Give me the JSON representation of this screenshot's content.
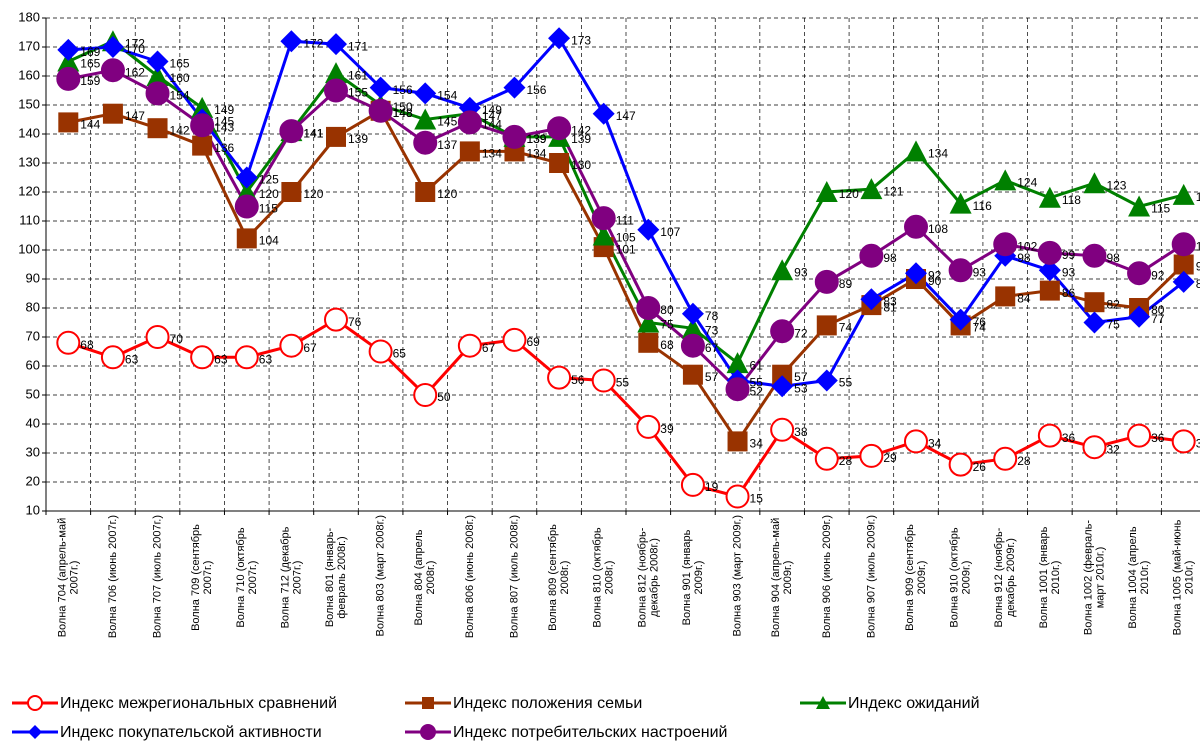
{
  "chart_data": {
    "type": "line",
    "categories": [
      "Волна 704 (апрель-май 2007г.)",
      "Волна 706 (июнь 2007г.)",
      "Волна 707 (июль 2007г.)",
      "Волна 709 (сентябрь 2007г.)",
      "Волна 710 (октябрь 2007г.)",
      "Волна 712 (декабрь 2007г.)",
      "Волна 801 (январь-февраль 2008г.)",
      "Волна 803 (март 2008г.)",
      "Волна 804 (апрель 2008г.)",
      "Волна 806 (июнь 2008г.)",
      "Волна 807 (июль 2008г.)",
      "Волна 809 (сентябрь 2008г.)",
      "Волна 810 (октябрь 2008г.)",
      "Волна 812 (ноябрь-декабрь 2008г.)",
      "Волна 901 (январь 2009г.)",
      "Волна 903 (март 2009г.)",
      "Волна 904 (апрель-май 2009г.)",
      "Волна 906 (июнь 2009г.)",
      "Волна 907 (июль 2009г.)",
      "Волна 909 (сентябрь 2009г.)",
      "Волна 910 (октябрь 2009г.)",
      "Волна 912 (ноябрь-декабрь 2009г.)",
      "Волна 1001 (январь 2010г.)",
      "Волна 1002 (февраль-март 2010г.)",
      "Волна 1004 (апрель 2010г.)",
      "Волна 1005 (май-июнь 2010г.)"
    ],
    "series": [
      {
        "name": "Индекс межрегиональных сравнений",
        "color": "#ff0000",
        "marker": "circle-open",
        "values": [
          68,
          63,
          70,
          63,
          63,
          67,
          76,
          65,
          50,
          67,
          69,
          56,
          55,
          39,
          19,
          15,
          38,
          28,
          29,
          34,
          26,
          28,
          36,
          32,
          36,
          34
        ]
      },
      {
        "name": "Индекс положения семьи",
        "color": "#993300",
        "marker": "square",
        "values": [
          144,
          147,
          142,
          136,
          104,
          120,
          139,
          148,
          120,
          134,
          134,
          130,
          101,
          68,
          57,
          34,
          57,
          74,
          81,
          90,
          74,
          84,
          86,
          82,
          80,
          95
        ]
      },
      {
        "name": "Индекс ожиданий",
        "color": "#008000",
        "marker": "triangle",
        "values": [
          165,
          172,
          160,
          149,
          120,
          141,
          161,
          150,
          145,
          147,
          139,
          139,
          105,
          75,
          73,
          61,
          93,
          120,
          121,
          134,
          116,
          124,
          118,
          123,
          115,
          119
        ]
      },
      {
        "name": "Индекс покупательской активности",
        "color": "#0000ff",
        "marker": "diamond",
        "values": [
          169,
          170,
          165,
          145,
          125,
          172,
          171,
          156,
          154,
          149,
          156,
          173,
          147,
          107,
          78,
          55,
          53,
          55,
          83,
          92,
          76,
          98,
          93,
          75,
          77,
          89
        ]
      },
      {
        "name": "Индекс потребительских настроений",
        "color": "#800080",
        "marker": "circle",
        "values": [
          159,
          162,
          154,
          143,
          115,
          141,
          155,
          148,
          137,
          144,
          139,
          142,
          111,
          80,
          67,
          52,
          72,
          89,
          98,
          108,
          93,
          102,
          99,
          98,
          92,
          102
        ]
      }
    ],
    "ylim": [
      10,
      180
    ],
    "yticks": [
      10,
      20,
      30,
      40,
      50,
      60,
      70,
      80,
      90,
      100,
      110,
      120,
      130,
      140,
      150,
      160,
      170,
      180
    ],
    "grid": true,
    "legend": "bottom"
  }
}
